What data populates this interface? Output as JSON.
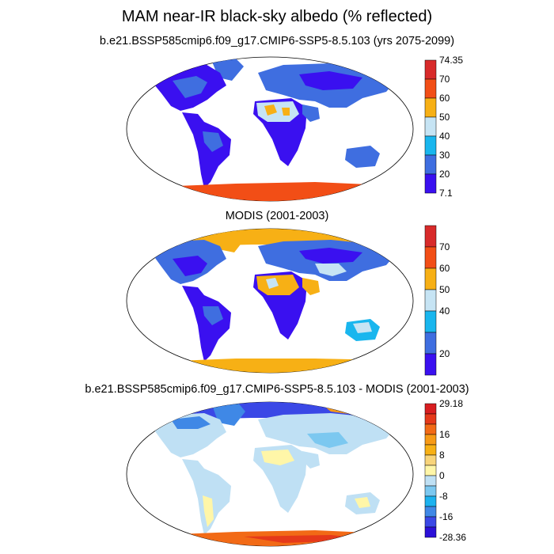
{
  "figure": {
    "title": "MAM near-IR black-sky albedo (% reflected)",
    "panels": [
      {
        "subtitle": "b.e21.BSSP585cmip6.f09_g17.CMIP6-SSP5-8.5.103 (yrs 2075-2099)",
        "colorbar": {
          "colors": [
            "#3a10f0",
            "#3f6ee0",
            "#19b6ee",
            "#c6e4f4",
            "#f7b015",
            "#f24e16",
            "#d82a2a"
          ],
          "labels": [
            "74.35",
            "70",
            "60",
            "50",
            "40",
            "30",
            "20",
            "7.1"
          ]
        }
      },
      {
        "subtitle": "MODIS (2001-2003)",
        "colorbar": {
          "colors": [
            "#3a10f0",
            "#3f6ee0",
            "#19b6ee",
            "#c6e4f4",
            "#f7b015",
            "#f24e16",
            "#d82a2a"
          ],
          "labels": [
            "70",
            "60",
            "50",
            "40",
            "20"
          ]
        }
      },
      {
        "subtitle": "b.e21.BSSP585cmip6.f09_g17.CMIP6-SSP5-8.5.103 - MODIS (2001-2003)",
        "colorbar": {
          "colors": [
            "#2b10d8",
            "#3a48e6",
            "#3f88e6",
            "#1cb2ef",
            "#7cc8f0",
            "#bfe0f4",
            "#fff6a8",
            "#f8d47a",
            "#f7b015",
            "#f79a16",
            "#f26a16",
            "#e5391a",
            "#d81e20"
          ],
          "labels": [
            "29.18",
            "16",
            "8",
            "0",
            "-8",
            "-16",
            "-28.36"
          ]
        }
      }
    ]
  }
}
